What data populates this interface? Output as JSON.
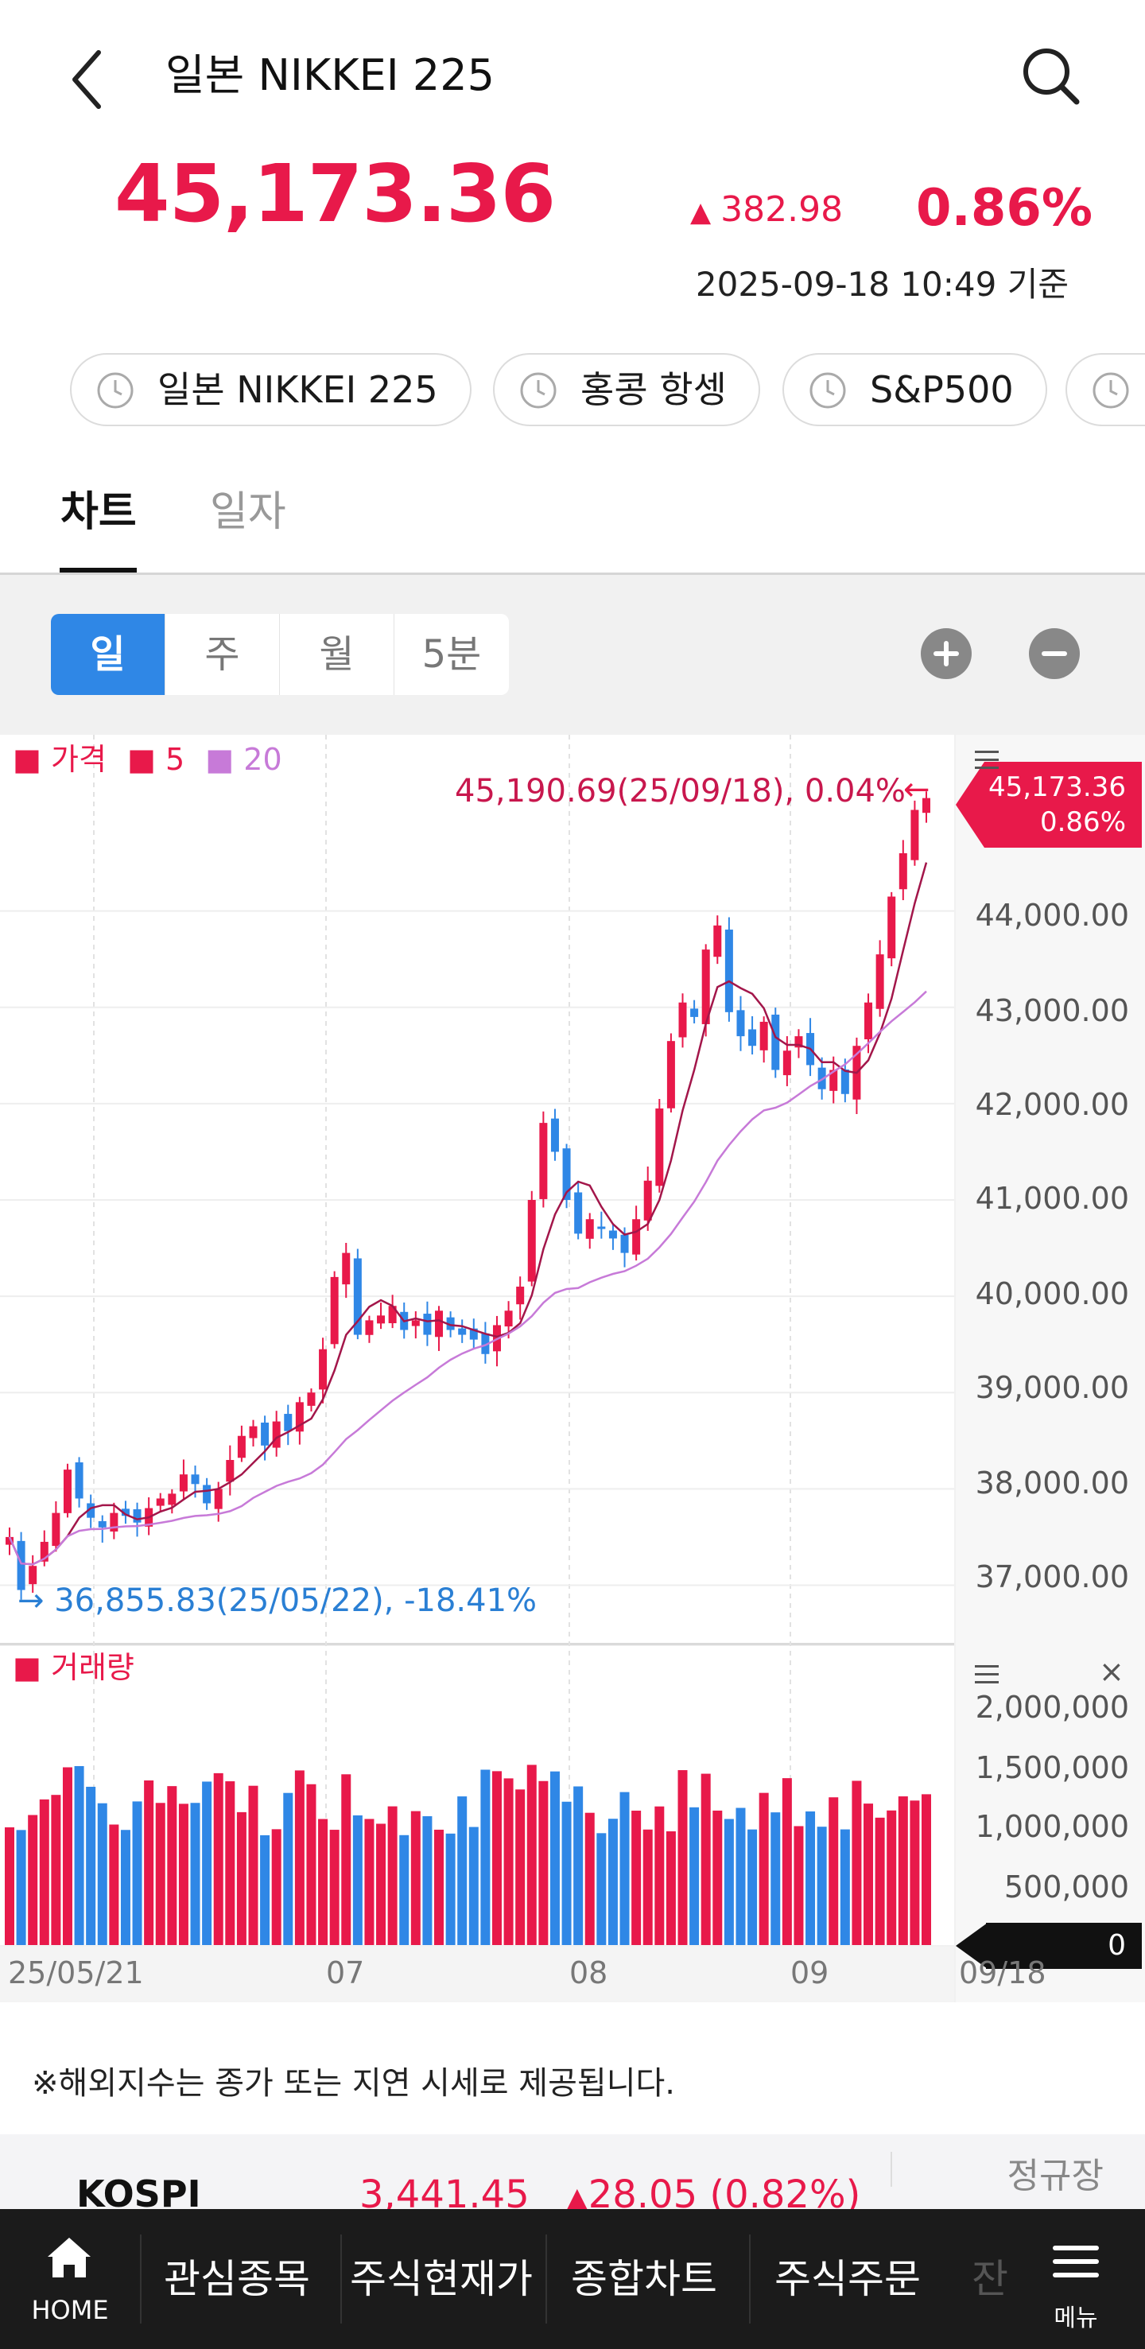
{
  "header": {
    "title": "일본 NIKKEI 225",
    "price": "45,173.36",
    "change": "382.98",
    "change_pct": "0.86%",
    "timestamp": "2025-09-18 10:49 기준",
    "up_color": "#e8194a",
    "down_color": "#2f87e6"
  },
  "chips": [
    "일본 NIKKEI 225",
    "홍콩 항셍",
    "S&P500"
  ],
  "tabs": {
    "chart": "차트",
    "daily": "일자"
  },
  "periods": [
    "일",
    "주",
    "월",
    "5분"
  ],
  "chart": {
    "legend": {
      "price": "가격",
      "ma5": "5",
      "ma20": "20"
    },
    "high_label": "45,190.69(25/09/18), 0.04%",
    "low_label": "36,855.83(25/05/22), -18.41%",
    "current_price": "45,173.36",
    "current_pct": "0.86%",
    "y_ticks": [
      "44,000.00",
      "43,000.00",
      "42,000.00",
      "41,000.00",
      "40,000.00",
      "39,000.00",
      "38,000.00",
      "37,000.00"
    ],
    "vol_legend": "거래량",
    "vol_ticks": [
      "2,000,000",
      "1,500,000",
      "1,000,000",
      "500,000"
    ],
    "vol_current": "0",
    "x_ticks": [
      "25/05/21",
      "07",
      "08",
      "09",
      "09/18"
    ]
  },
  "chart_data": {
    "type": "candlestick",
    "x_range": [
      "25/05/21",
      "09/18"
    ],
    "ylim": [
      36500,
      45500
    ],
    "close": [
      37500,
      36950,
      37200,
      37450,
      37750,
      38200,
      37900,
      37700,
      37600,
      37750,
      37720,
      37650,
      37800,
      37900,
      37950,
      38150,
      38050,
      37850,
      38000,
      38300,
      38550,
      38650,
      38450,
      38700,
      38600,
      38900,
      39000,
      39450,
      40200,
      40450,
      39600,
      39750,
      39800,
      39900,
      39650,
      39750,
      39600,
      39850,
      39650,
      39600,
      39550,
      39400,
      39700,
      39850,
      40100,
      41000,
      41800,
      41500,
      41000,
      40650,
      40800,
      40700,
      40600,
      40450,
      40800,
      41200,
      41950,
      42650,
      43050,
      42900,
      43600,
      43850,
      42950,
      42700,
      42600,
      42850,
      42350,
      42550,
      42700,
      42400,
      42150,
      42350,
      42100,
      42600,
      43050,
      43550,
      44150,
      44600,
      45050,
      45173
    ]
  },
  "notice": "※해외지수는 종가 또는 지연 시세로 제공됩니다.",
  "kospi": {
    "name": "KOSPI",
    "value": "3,441.45",
    "change": "28.05 (0.82%)",
    "session": "정규장"
  },
  "bottom_nav": {
    "home": "HOME",
    "items": [
      "관심종목",
      "주식현재가",
      "종합차트",
      "주식주문",
      "잔"
    ],
    "menu": "메뉴"
  }
}
